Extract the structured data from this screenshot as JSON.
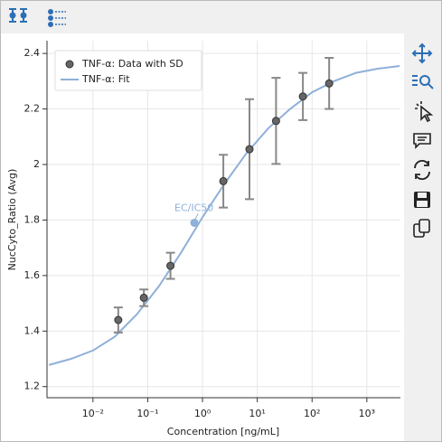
{
  "chart_data": {
    "type": "scatter-fit",
    "xlabel": "Concentration [ng/mL]",
    "ylabel": "NucCyto_Ratio (Avg)",
    "xscale": "log",
    "xlim": [
      0.00145,
      4100
    ],
    "ylim": [
      1.16,
      2.446
    ],
    "xticks": [
      {
        "value": 0.01,
        "label": "10⁻²"
      },
      {
        "value": 0.1,
        "label": "10⁻¹"
      },
      {
        "value": 1,
        "label": "10⁰"
      },
      {
        "value": 10,
        "label": "10¹"
      },
      {
        "value": 100,
        "label": "10²"
      },
      {
        "value": 1000,
        "label": "10³"
      }
    ],
    "yticks": [
      1.2,
      1.4,
      1.6,
      1.8,
      2,
      2.2,
      2.4
    ],
    "grid": true,
    "legend": "upper left",
    "series": [
      {
        "name": "TNF-α: Data with SD",
        "color": "#666666",
        "x": [
          0.029,
          0.085,
          0.26,
          2.4,
          7.2,
          22,
          68,
          205
        ],
        "values": [
          1.44,
          1.52,
          1.635,
          1.94,
          2.055,
          2.157,
          2.245,
          2.292
        ],
        "errors": [
          0.045,
          0.03,
          0.047,
          0.095,
          0.18,
          0.155,
          0.085,
          0.092
        ]
      },
      {
        "name": "TNF-α: Fit",
        "color": "#8fb0d8",
        "x": [
          0.00158,
          0.00398,
          0.01,
          0.0251,
          0.0631,
          0.158,
          0.398,
          1,
          2.51,
          6.31,
          15.8,
          39.8,
          100,
          251,
          631,
          1585,
          3981
        ],
        "values": [
          1.278,
          1.3,
          1.33,
          1.38,
          1.46,
          1.56,
          1.68,
          1.81,
          1.93,
          2.04,
          2.13,
          2.2,
          2.26,
          2.3,
          2.33,
          2.345,
          2.355
        ]
      }
    ],
    "ec50": {
      "label": "EC/IC50",
      "x": 0.71,
      "y": 1.79,
      "color": "#8fb0d8"
    }
  }
}
